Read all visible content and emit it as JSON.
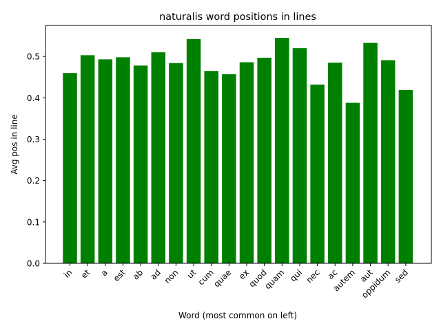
{
  "chart_data": {
    "type": "bar",
    "title": "naturalis word positions in lines",
    "xlabel": "Word (most common on left)",
    "ylabel": "Avg pos in line",
    "categories": [
      "in",
      "et",
      "a",
      "est",
      "ab",
      "ad",
      "non",
      "ut",
      "cum",
      "quae",
      "ex",
      "quod",
      "quam",
      "qui",
      "nec",
      "ac",
      "autem",
      "aut",
      "oppidum",
      "sed"
    ],
    "values": [
      0.46,
      0.503,
      0.493,
      0.498,
      0.478,
      0.51,
      0.484,
      0.542,
      0.465,
      0.457,
      0.486,
      0.497,
      0.545,
      0.52,
      0.432,
      0.485,
      0.388,
      0.533,
      0.491,
      0.419
    ],
    "ylim": [
      0,
      0.575
    ],
    "yticks": [
      "0.0",
      "0.1",
      "0.2",
      "0.3",
      "0.4",
      "0.5"
    ],
    "bar_color": "#008000",
    "grid": false
  }
}
